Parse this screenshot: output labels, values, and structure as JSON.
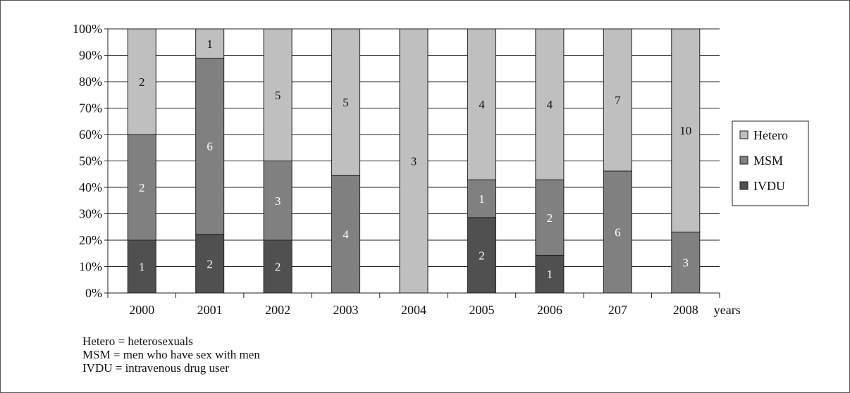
{
  "chart_data": {
    "type": "bar",
    "stacked": true,
    "percent_stacked": true,
    "categories": [
      "2000",
      "2001",
      "2002",
      "2003",
      "2004",
      "2005",
      "2006",
      "207",
      "2008"
    ],
    "xlabel_suffix": "years",
    "y_ticks": [
      "0%",
      "10%",
      "20%",
      "30%",
      "40%",
      "50%",
      "60%",
      "70%",
      "80%",
      "90%",
      "100%"
    ],
    "ylim": [
      0,
      100
    ],
    "grid": true,
    "legend_position": "right",
    "series": [
      {
        "name": "IVDU",
        "color": "#505050",
        "label_color": "#ffffff",
        "values": [
          1,
          2,
          2,
          0,
          0,
          2,
          1,
          0,
          0
        ]
      },
      {
        "name": "MSM",
        "color": "#808080",
        "label_color": "#ffffff",
        "values": [
          2,
          6,
          3,
          4,
          0,
          1,
          2,
          6,
          3
        ]
      },
      {
        "name": "Hetero",
        "color": "#bfbfbf",
        "label_color": "#111111",
        "values": [
          2,
          1,
          5,
          5,
          3,
          4,
          4,
          7,
          10
        ]
      }
    ],
    "legend_order": [
      "Hetero",
      "MSM",
      "IVDU"
    ]
  },
  "notes": [
    "Hetero = heterosexuals",
    "MSM = men who have sex with men",
    "IVDU = intravenous drug user"
  ]
}
